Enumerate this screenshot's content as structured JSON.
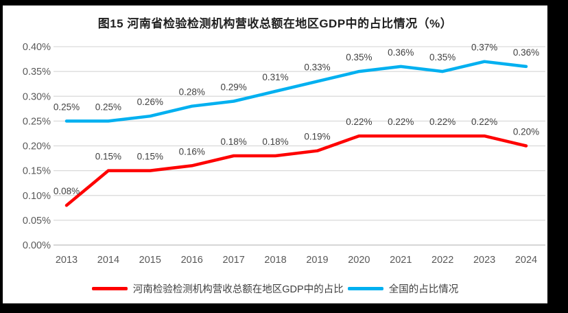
{
  "title": "图15  河南省检验检测机构营收总额在地区GDP中的占比情况（%）",
  "chart_data": {
    "type": "line",
    "categories": [
      "2013",
      "2014",
      "2015",
      "2016",
      "2017",
      "2018",
      "2019",
      "2020",
      "2021",
      "2022",
      "2023",
      "2024"
    ],
    "series": [
      {
        "name": "河南检验检测机构营收总额在地区GDP中的占比",
        "color": "#fe0000",
        "values": [
          0.08,
          0.15,
          0.15,
          0.16,
          0.18,
          0.18,
          0.19,
          0.22,
          0.22,
          0.22,
          0.22,
          0.2
        ],
        "labels": [
          "0.08%",
          "0.15%",
          "0.15%",
          "0.16%",
          "0.18%",
          "0.18%",
          "0.19%",
          "0.22%",
          "0.22%",
          "0.22%",
          "0.22%",
          "0.20%"
        ]
      },
      {
        "name": "全国的占比情况",
        "color": "#00b0f0",
        "values": [
          0.25,
          0.25,
          0.26,
          0.28,
          0.29,
          0.31,
          0.33,
          0.35,
          0.36,
          0.35,
          0.37,
          0.36
        ],
        "labels": [
          "0.25%",
          "0.25%",
          "0.26%",
          "0.28%",
          "0.29%",
          "0.31%",
          "0.33%",
          "0.35%",
          "0.36%",
          "0.35%",
          "0.37%",
          "0.36%"
        ]
      }
    ],
    "title": "图15  河南省检验检测机构营收总额在地区GDP中的占比情况（%）",
    "xlabel": "",
    "ylabel": "",
    "ylim": [
      0.0,
      0.4
    ],
    "ytick_step": 0.05,
    "ytick_labels": [
      "0.00%",
      "0.05%",
      "0.10%",
      "0.15%",
      "0.20%",
      "0.25%",
      "0.30%",
      "0.35%",
      "0.40%"
    ],
    "grid": true,
    "legend_position": "bottom"
  },
  "colors": {
    "background": "#ffffff",
    "frame_border": "#000000",
    "gridline": "#d9d9d9",
    "baseline": "#c9c9c9",
    "axis_text": "#595959",
    "data_label_text": "#404040",
    "title_text": "#1f1f1f"
  }
}
